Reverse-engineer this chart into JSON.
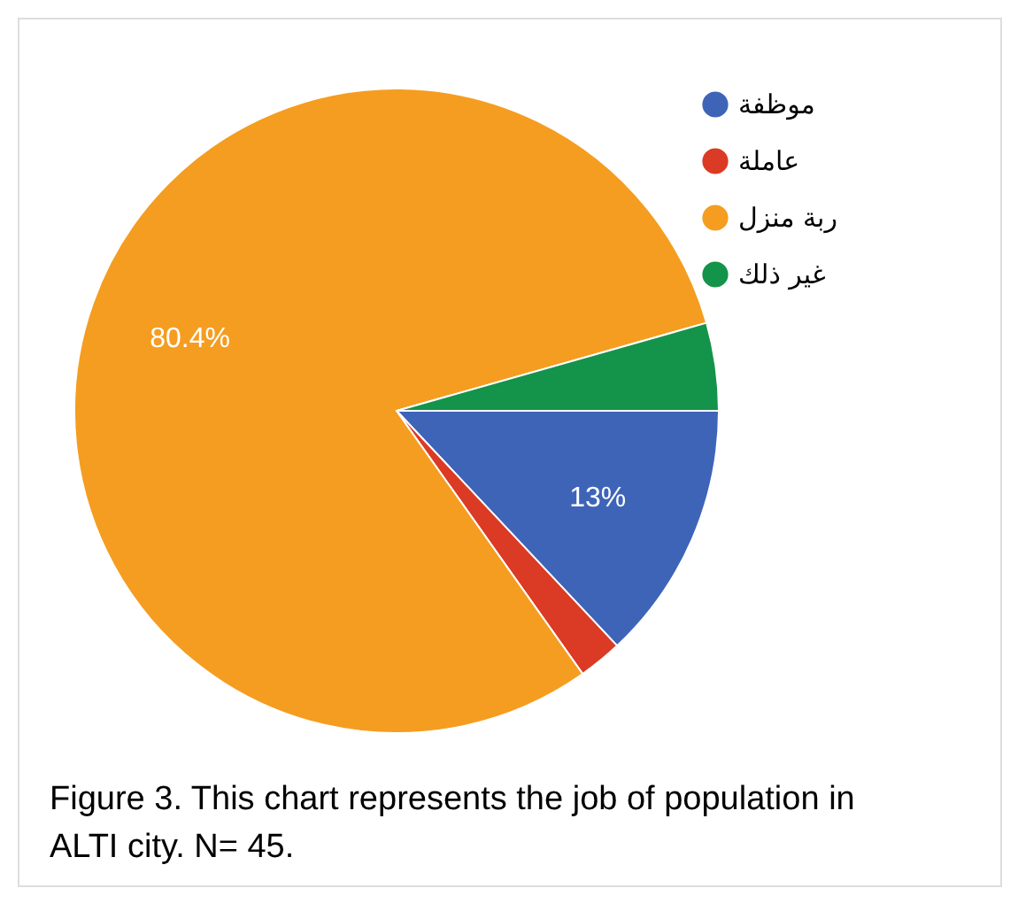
{
  "chart_data": {
    "type": "pie",
    "categories": [
      "موظفة",
      "عاملة",
      "ربة منزل",
      "غير ذلك"
    ],
    "values": [
      13,
      2.2,
      80.4,
      4.4
    ],
    "colors": [
      "#3e64b8",
      "#db3a24",
      "#f59d20",
      "#14934a"
    ],
    "value_labels": [
      "13%",
      null,
      "80.4%",
      null
    ],
    "legend": "top right",
    "annotations": [
      "Figure 3. This chart represents the job of population in ALTI city. N= 45."
    ]
  }
}
